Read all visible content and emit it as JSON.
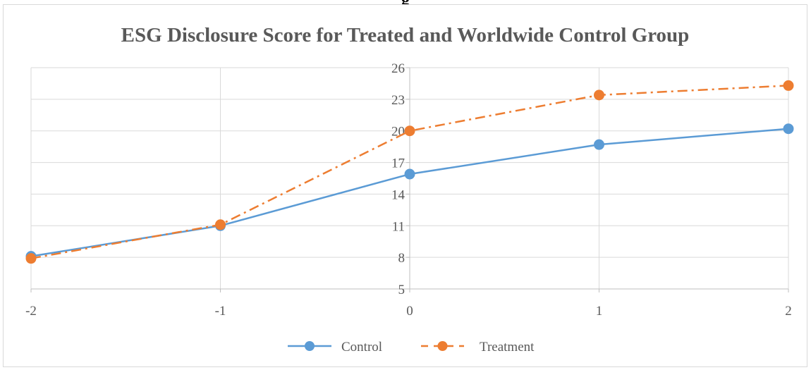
{
  "top_fragment": "g",
  "chart_data": {
    "type": "line",
    "title": "ESG Disclosure Score for Treated and Worldwide Control Group",
    "xlabel": "",
    "ylabel": "",
    "x": [
      -2,
      -1,
      0,
      1,
      2
    ],
    "x_tick_labels": [
      "-2",
      "-1",
      "0",
      "1",
      "2"
    ],
    "ylim": [
      5,
      26
    ],
    "y_ticks": [
      5,
      8,
      11,
      14,
      17,
      20,
      23,
      26
    ],
    "y_tick_labels": [
      "5",
      "8",
      "11",
      "14",
      "17",
      "20",
      "23",
      "26"
    ],
    "grid": true,
    "legend_position": "bottom",
    "series": [
      {
        "name": "Control",
        "values": [
          8.1,
          11.0,
          15.9,
          18.7,
          20.2
        ],
        "color": "#5b9bd5",
        "line_style": "solid",
        "marker": "circle"
      },
      {
        "name": "Treatment",
        "values": [
          7.9,
          11.1,
          20.0,
          23.4,
          24.3
        ],
        "color": "#ed7d31",
        "line_style": "dash-dot",
        "marker": "circle"
      }
    ]
  }
}
